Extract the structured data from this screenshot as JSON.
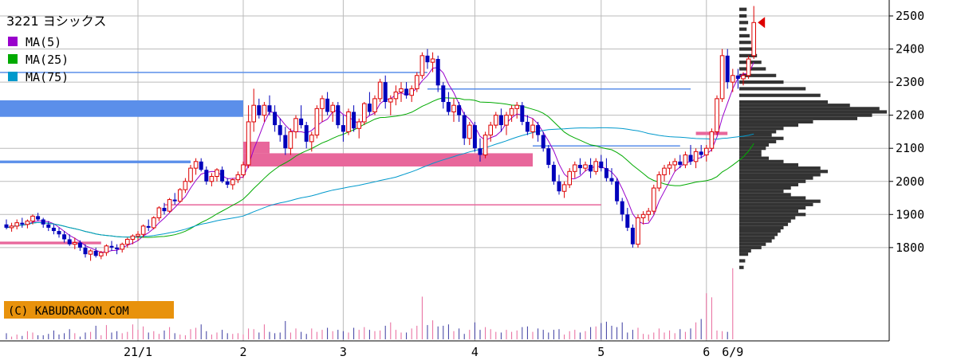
{
  "chart_data": {
    "type": "candlestick",
    "title": "3221 ヨシックス",
    "credit": "(C) KABUDRAGON.COM",
    "x_ticks": [
      {
        "label": "21/1",
        "index": 25
      },
      {
        "label": "2",
        "index": 45
      },
      {
        "label": "3",
        "index": 64
      },
      {
        "label": "4",
        "index": 89
      },
      {
        "label": "5",
        "index": 113
      },
      {
        "label": "6",
        "index": 133
      },
      {
        "label": "6/9",
        "index": 138
      }
    ],
    "y_ticks": [
      "2500",
      "2400",
      "2300",
      "2200",
      "2100",
      "2000",
      "1900",
      "1800"
    ],
    "ylim": [
      1720,
      2530
    ],
    "last_price": 2480,
    "grid": true,
    "legend": [
      {
        "name": "MA(5)",
        "color": "#9900cc"
      },
      {
        "name": "MA(25)",
        "color": "#00aa00"
      },
      {
        "name": "MA(75)",
        "color": "#0099cc"
      }
    ],
    "colors": {
      "up": "#dd0000",
      "down": "#0000bb",
      "ma5": "#9900cc",
      "ma25": "#00aa00",
      "ma75": "#0099cc",
      "blue_zone": "#5b8fea",
      "pink_zone": "#e8679b",
      "profile": "#333333",
      "volume": "#3a3aa0",
      "credit_bg": "#e8920c",
      "grid": "#bbbbbb",
      "marker": "#dd0000"
    },
    "ohlc": [
      [
        1870,
        1885,
        1855,
        1860
      ],
      [
        1860,
        1875,
        1848,
        1865
      ],
      [
        1865,
        1885,
        1855,
        1875
      ],
      [
        1875,
        1890,
        1860,
        1870
      ],
      [
        1870,
        1885,
        1858,
        1880
      ],
      [
        1880,
        1900,
        1870,
        1895
      ],
      [
        1895,
        1905,
        1880,
        1885
      ],
      [
        1885,
        1890,
        1860,
        1870
      ],
      [
        1870,
        1880,
        1850,
        1860
      ],
      [
        1860,
        1870,
        1840,
        1850
      ],
      [
        1850,
        1860,
        1830,
        1840
      ],
      [
        1840,
        1850,
        1815,
        1825
      ],
      [
        1825,
        1840,
        1805,
        1810
      ],
      [
        1810,
        1830,
        1795,
        1815
      ],
      [
        1815,
        1822,
        1790,
        1800
      ],
      [
        1800,
        1810,
        1770,
        1780
      ],
      [
        1780,
        1795,
        1760,
        1790
      ],
      [
        1790,
        1800,
        1770,
        1775
      ],
      [
        1775,
        1790,
        1765,
        1785
      ],
      [
        1785,
        1810,
        1775,
        1805
      ],
      [
        1805,
        1820,
        1790,
        1800
      ],
      [
        1800,
        1810,
        1780,
        1795
      ],
      [
        1795,
        1815,
        1785,
        1810
      ],
      [
        1810,
        1830,
        1800,
        1825
      ],
      [
        1825,
        1840,
        1810,
        1835
      ],
      [
        1835,
        1850,
        1820,
        1840
      ],
      [
        1840,
        1870,
        1830,
        1865
      ],
      [
        1865,
        1885,
        1850,
        1860
      ],
      [
        1860,
        1895,
        1855,
        1890
      ],
      [
        1890,
        1925,
        1880,
        1920
      ],
      [
        1920,
        1935,
        1900,
        1910
      ],
      [
        1910,
        1950,
        1905,
        1945
      ],
      [
        1945,
        1965,
        1930,
        1940
      ],
      [
        1940,
        1980,
        1935,
        1975
      ],
      [
        1975,
        2010,
        1965,
        2000
      ],
      [
        2000,
        2050,
        1995,
        2040
      ],
      [
        2040,
        2070,
        2020,
        2060
      ],
      [
        2060,
        2070,
        2030,
        2035
      ],
      [
        2035,
        2045,
        1990,
        2000
      ],
      [
        2000,
        2025,
        1985,
        2015
      ],
      [
        2015,
        2040,
        2000,
        2035
      ],
      [
        2035,
        2045,
        1995,
        2000
      ],
      [
        2000,
        2010,
        1980,
        1990
      ],
      [
        1990,
        2010,
        1975,
        2005
      ],
      [
        2005,
        2030,
        1995,
        2020
      ],
      [
        2020,
        2060,
        2010,
        2050
      ],
      [
        2050,
        2230,
        2040,
        2180
      ],
      [
        2180,
        2280,
        2150,
        2230
      ],
      [
        2230,
        2250,
        2190,
        2200
      ],
      [
        2200,
        2240,
        2180,
        2230
      ],
      [
        2230,
        2260,
        2200,
        2210
      ],
      [
        2210,
        2230,
        2150,
        2170
      ],
      [
        2170,
        2190,
        2120,
        2140
      ],
      [
        2140,
        2165,
        2080,
        2100
      ],
      [
        2100,
        2160,
        2080,
        2150
      ],
      [
        2150,
        2200,
        2130,
        2190
      ],
      [
        2190,
        2230,
        2160,
        2170
      ],
      [
        2170,
        2180,
        2100,
        2120
      ],
      [
        2120,
        2150,
        2090,
        2140
      ],
      [
        2140,
        2230,
        2130,
        2220
      ],
      [
        2220,
        2260,
        2180,
        2250
      ],
      [
        2250,
        2270,
        2200,
        2210
      ],
      [
        2210,
        2240,
        2180,
        2230
      ],
      [
        2230,
        2240,
        2160,
        2170
      ],
      [
        2170,
        2200,
        2120,
        2150
      ],
      [
        2150,
        2220,
        2140,
        2210
      ],
      [
        2210,
        2230,
        2150,
        2160
      ],
      [
        2160,
        2190,
        2130,
        2180
      ],
      [
        2180,
        2240,
        2170,
        2235
      ],
      [
        2235,
        2270,
        2200,
        2210
      ],
      [
        2210,
        2260,
        2200,
        2250
      ],
      [
        2250,
        2310,
        2240,
        2300
      ],
      [
        2300,
        2320,
        2220,
        2240
      ],
      [
        2240,
        2260,
        2200,
        2250
      ],
      [
        2250,
        2290,
        2230,
        2270
      ],
      [
        2270,
        2300,
        2240,
        2280
      ],
      [
        2280,
        2300,
        2250,
        2260
      ],
      [
        2260,
        2290,
        2240,
        2280
      ],
      [
        2280,
        2330,
        2270,
        2320
      ],
      [
        2320,
        2390,
        2310,
        2380
      ],
      [
        2380,
        2400,
        2340,
        2360
      ],
      [
        2360,
        2390,
        2330,
        2370
      ],
      [
        2370,
        2380,
        2270,
        2290
      ],
      [
        2290,
        2300,
        2220,
        2240
      ],
      [
        2240,
        2270,
        2200,
        2210
      ],
      [
        2210,
        2250,
        2180,
        2230
      ],
      [
        2230,
        2240,
        2180,
        2200
      ],
      [
        2200,
        2210,
        2110,
        2130
      ],
      [
        2130,
        2180,
        2110,
        2170
      ],
      [
        2170,
        2180,
        2090,
        2100
      ],
      [
        2100,
        2130,
        2060,
        2080
      ],
      [
        2080,
        2150,
        2070,
        2140
      ],
      [
        2140,
        2180,
        2120,
        2170
      ],
      [
        2170,
        2210,
        2160,
        2200
      ],
      [
        2200,
        2220,
        2150,
        2170
      ],
      [
        2170,
        2210,
        2140,
        2200
      ],
      [
        2200,
        2230,
        2180,
        2220
      ],
      [
        2220,
        2240,
        2190,
        2230
      ],
      [
        2230,
        2240,
        2170,
        2180
      ],
      [
        2180,
        2200,
        2140,
        2150
      ],
      [
        2150,
        2190,
        2130,
        2170
      ],
      [
        2170,
        2180,
        2120,
        2140
      ],
      [
        2140,
        2150,
        2090,
        2100
      ],
      [
        2100,
        2110,
        2040,
        2050
      ],
      [
        2050,
        2060,
        1990,
        2000
      ],
      [
        2000,
        2020,
        1960,
        1970
      ],
      [
        1970,
        2000,
        1950,
        1990
      ],
      [
        1990,
        2040,
        1980,
        2030
      ],
      [
        2030,
        2060,
        2010,
        2050
      ],
      [
        2050,
        2070,
        2020,
        2040
      ],
      [
        2040,
        2060,
        2030,
        2050
      ],
      [
        2050,
        2070,
        2010,
        2030
      ],
      [
        2030,
        2070,
        2020,
        2060
      ],
      [
        2060,
        2080,
        2030,
        2040
      ],
      [
        2040,
        2070,
        2000,
        2010
      ],
      [
        2010,
        2040,
        1990,
        2000
      ],
      [
        2000,
        2010,
        1930,
        1940
      ],
      [
        1940,
        1950,
        1880,
        1900
      ],
      [
        1900,
        1920,
        1850,
        1860
      ],
      [
        1860,
        1870,
        1800,
        1810
      ],
      [
        1810,
        1900,
        1800,
        1890
      ],
      [
        1890,
        1910,
        1870,
        1900
      ],
      [
        1900,
        1920,
        1880,
        1910
      ],
      [
        1910,
        1990,
        1900,
        1980
      ],
      [
        1980,
        2030,
        1970,
        2020
      ],
      [
        2020,
        2050,
        2000,
        2040
      ],
      [
        2040,
        2060,
        2020,
        2050
      ],
      [
        2050,
        2070,
        2030,
        2060
      ],
      [
        2060,
        2080,
        2040,
        2050
      ],
      [
        2050,
        2090,
        2040,
        2080
      ],
      [
        2080,
        2110,
        2050,
        2060
      ],
      [
        2060,
        2100,
        2040,
        2090
      ],
      [
        2090,
        2110,
        2070,
        2080
      ],
      [
        2080,
        2110,
        2060,
        2100
      ],
      [
        2100,
        2160,
        2090,
        2150
      ],
      [
        2150,
        2260,
        2140,
        2250
      ],
      [
        2250,
        2400,
        2240,
        2380
      ],
      [
        2380,
        2400,
        2280,
        2300
      ],
      [
        2300,
        2340,
        2270,
        2320
      ],
      [
        2320,
        2340,
        2280,
        2310
      ],
      [
        2310,
        2330,
        2290,
        2320
      ],
      [
        2320,
        2380,
        2310,
        2370
      ],
      [
        2380,
        2530,
        2370,
        2480
      ]
    ],
    "volume": [
      9,
      4,
      7,
      5,
      12,
      10,
      6,
      6,
      8,
      13,
      7,
      9,
      15,
      9,
      4,
      10,
      11,
      20,
      6,
      21,
      10,
      12,
      9,
      11,
      22,
      14,
      19,
      10,
      12,
      8,
      13,
      18,
      9,
      7,
      6,
      15,
      17,
      22,
      12,
      7,
      10,
      14,
      9,
      8,
      9,
      7,
      16,
      15,
      10,
      22,
      11,
      9,
      10,
      27,
      10,
      16,
      11,
      8,
      16,
      11,
      14,
      17,
      12,
      14,
      12,
      10,
      17,
      14,
      18,
      14,
      12,
      13,
      20,
      25,
      14,
      10,
      10,
      16,
      20,
      63,
      21,
      28,
      19,
      20,
      22,
      12,
      16,
      8,
      14,
      25,
      14,
      18,
      15,
      11,
      10,
      14,
      11,
      13,
      18,
      19,
      11,
      16,
      14,
      10,
      14,
      15,
      7,
      12,
      14,
      10,
      12,
      18,
      19,
      24,
      26,
      20,
      18,
      25,
      10,
      14,
      17,
      8,
      7,
      10,
      16,
      10,
      13,
      9,
      15,
      11,
      16,
      25,
      30,
      68,
      62,
      13,
      12,
      11,
      105
    ],
    "price_profile": [
      [
        2520,
        0.05
      ],
      [
        2500,
        0.05
      ],
      [
        2480,
        0.06
      ],
      [
        2460,
        0.05
      ],
      [
        2440,
        0.07
      ],
      [
        2420,
        0.08
      ],
      [
        2400,
        0.1
      ],
      [
        2380,
        0.12
      ],
      [
        2360,
        0.15
      ],
      [
        2340,
        0.18
      ],
      [
        2320,
        0.25
      ],
      [
        2300,
        0.3
      ],
      [
        2280,
        0.45
      ],
      [
        2260,
        0.55
      ],
      [
        2240,
        0.6
      ],
      [
        2230,
        0.75
      ],
      [
        2220,
        0.95
      ],
      [
        2210,
        1.0
      ],
      [
        2200,
        0.9
      ],
      [
        2190,
        0.8
      ],
      [
        2180,
        0.5
      ],
      [
        2170,
        0.4
      ],
      [
        2160,
        0.3
      ],
      [
        2150,
        0.25
      ],
      [
        2140,
        0.22
      ],
      [
        2130,
        0.3
      ],
      [
        2120,
        0.25
      ],
      [
        2110,
        0.2
      ],
      [
        2100,
        0.18
      ],
      [
        2090,
        0.15
      ],
      [
        2080,
        0.15
      ],
      [
        2070,
        0.2
      ],
      [
        2060,
        0.3
      ],
      [
        2050,
        0.4
      ],
      [
        2040,
        0.55
      ],
      [
        2030,
        0.6
      ],
      [
        2020,
        0.55
      ],
      [
        2010,
        0.5
      ],
      [
        2000,
        0.45
      ],
      [
        1990,
        0.4
      ],
      [
        1980,
        0.35
      ],
      [
        1970,
        0.3
      ],
      [
        1960,
        0.35
      ],
      [
        1950,
        0.45
      ],
      [
        1940,
        0.55
      ],
      [
        1930,
        0.5
      ],
      [
        1920,
        0.45
      ],
      [
        1910,
        0.4
      ],
      [
        1900,
        0.45
      ],
      [
        1890,
        0.38
      ],
      [
        1880,
        0.35
      ],
      [
        1870,
        0.33
      ],
      [
        1860,
        0.3
      ],
      [
        1850,
        0.28
      ],
      [
        1840,
        0.26
      ],
      [
        1830,
        0.24
      ],
      [
        1820,
        0.22
      ],
      [
        1810,
        0.18
      ],
      [
        1800,
        0.15
      ],
      [
        1790,
        0.08
      ],
      [
        1780,
        0.06
      ],
      [
        1760,
        0.04
      ],
      [
        1740,
        0.03
      ]
    ],
    "horizontal_zones": [
      {
        "kind": "blue",
        "start": 0,
        "end": 45,
        "low": 2195,
        "high": 2245
      },
      {
        "kind": "blue",
        "start": 0,
        "end": 35,
        "low": 2055,
        "high": 2063
      },
      {
        "kind": "blue",
        "start": 0,
        "end": 80,
        "low": 2329,
        "high": 2331
      },
      {
        "kind": "blue",
        "start": 80,
        "end": 130,
        "low": 2279,
        "high": 2281
      },
      {
        "kind": "blue",
        "start": 100,
        "end": 128,
        "low": 2107,
        "high": 2109
      },
      {
        "kind": "pink",
        "start": 45,
        "end": 100,
        "low": 2045,
        "high": 2085
      },
      {
        "kind": "pink",
        "start": 45,
        "end": 50,
        "low": 2085,
        "high": 2120
      },
      {
        "kind": "pink",
        "start": 30,
        "end": 113,
        "low": 1929,
        "high": 1931
      },
      {
        "kind": "pink",
        "start": 0,
        "end": 18,
        "low": 1810,
        "high": 1818
      },
      {
        "kind": "pink",
        "start": 131,
        "end": 137,
        "low": 2140,
        "high": 2150
      }
    ]
  }
}
